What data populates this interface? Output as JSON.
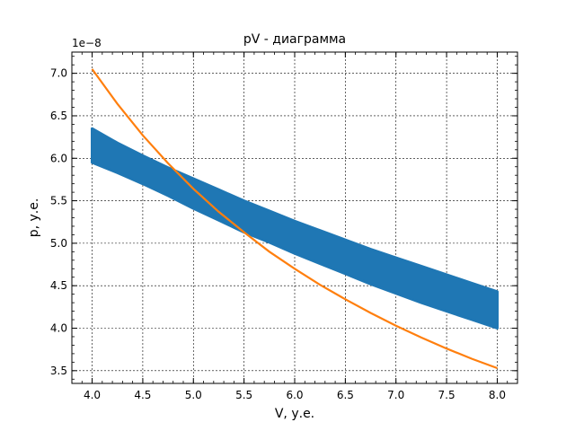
{
  "chart_data": {
    "type": "line",
    "title": "pV - диаграмма",
    "xlabel": "V, у.е.",
    "ylabel": "p, у.е.",
    "offset_text": "1e−8",
    "xlim": [
      3.8,
      8.2
    ],
    "ylim": [
      3.35,
      7.25
    ],
    "x_ticks": [
      4.0,
      4.5,
      5.0,
      5.5,
      6.0,
      6.5,
      7.0,
      7.5,
      8.0
    ],
    "x_tick_labels": [
      "4.0",
      "4.5",
      "5.0",
      "5.5",
      "6.0",
      "6.5",
      "7.0",
      "7.5",
      "8.0"
    ],
    "y_ticks": [
      3.5,
      4.0,
      4.5,
      5.0,
      5.5,
      6.0,
      6.5,
      7.0
    ],
    "y_tick_labels": [
      "3.5",
      "4.0",
      "4.5",
      "5.0",
      "5.5",
      "6.0",
      "6.5",
      "7.0"
    ],
    "grid": true,
    "grid_style": "dashed",
    "series": [
      {
        "kind": "band",
        "color": "#1f77b4",
        "x": [
          4.0,
          4.25,
          4.5,
          4.75,
          5.0,
          5.25,
          5.5,
          5.75,
          6.0,
          6.25,
          6.5,
          6.75,
          7.0,
          7.25,
          7.5,
          7.75,
          8.0
        ],
        "upper": [
          6.35,
          6.18,
          6.03,
          5.89,
          5.76,
          5.63,
          5.5,
          5.38,
          5.26,
          5.15,
          5.04,
          4.93,
          4.83,
          4.73,
          4.63,
          4.53,
          4.43
        ],
        "lower": [
          5.95,
          5.83,
          5.7,
          5.56,
          5.41,
          5.27,
          5.13,
          5.01,
          4.88,
          4.76,
          4.64,
          4.52,
          4.41,
          4.3,
          4.2,
          4.1,
          4.0
        ]
      },
      {
        "kind": "curve",
        "color": "#ff7f0e",
        "x": [
          4.0,
          4.25,
          4.5,
          4.75,
          5.0,
          5.25,
          5.5,
          5.75,
          6.0,
          6.25,
          6.5,
          6.75,
          7.0,
          7.25,
          7.5,
          7.75,
          8.0
        ],
        "y": [
          7.05,
          6.64,
          6.27,
          5.94,
          5.64,
          5.37,
          5.13,
          4.9,
          4.7,
          4.51,
          4.34,
          4.18,
          4.03,
          3.89,
          3.76,
          3.64,
          3.53
        ]
      }
    ]
  }
}
